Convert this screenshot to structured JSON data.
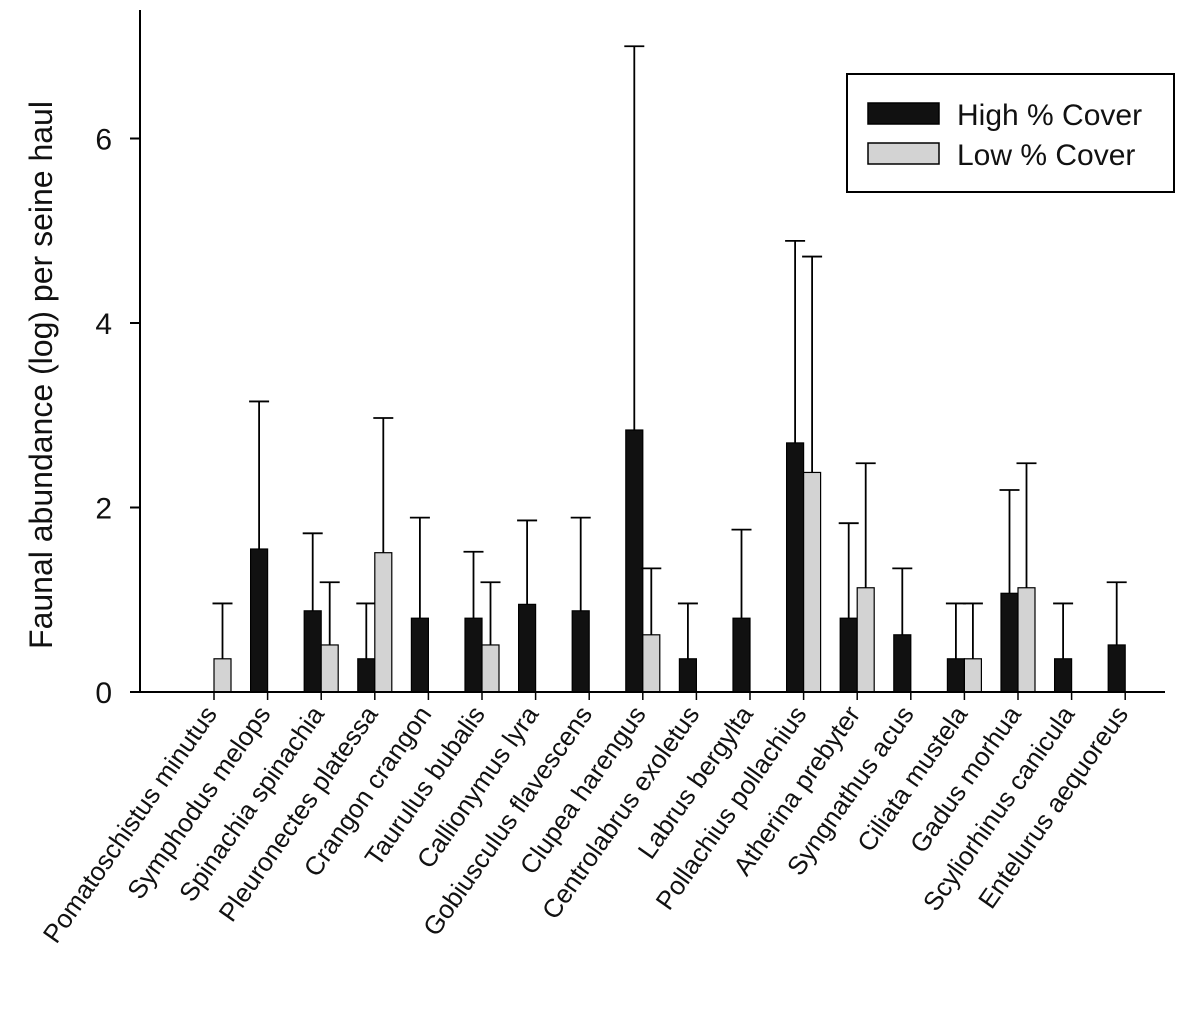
{
  "chart_data": {
    "type": "bar",
    "title": "",
    "xlabel": "",
    "ylabel": "Faunal abundance (log) per seine haul",
    "ylim": [
      0,
      7.4
    ],
    "yticks": [
      0,
      2,
      4,
      6
    ],
    "grid": false,
    "legend_position": "top-right",
    "categories": [
      "Pomatoschistus minutus",
      "Symphodus melops",
      "Spinachia spinachia",
      "Pleuronectes platessa",
      "Crangon crangon",
      "Taurulus bubalis",
      "Callionymus lyra",
      "Gobiusculus flavescens",
      "Clupea harengus",
      "Centrolabrus exoletus",
      "Labrus bergylta",
      "Pollachius pollachius",
      "Atherina prebyter",
      "Syngnathus acus",
      "Ciliata mustela",
      "Gadus morhua",
      "Scyliorhinus canicula",
      "Entelurus aequoreus"
    ],
    "series": [
      {
        "name": "High % Cover",
        "color": "#111111",
        "values": [
          0,
          1.55,
          0.88,
          0.36,
          0.8,
          0.8,
          0.95,
          0.88,
          2.84,
          0.36,
          0.8,
          2.7,
          0.8,
          0.62,
          0.36,
          1.07,
          0.36,
          0.51
        ],
        "error_top": [
          null,
          3.15,
          1.72,
          0.96,
          1.89,
          1.52,
          1.86,
          1.89,
          7.0,
          0.96,
          1.76,
          4.89,
          1.83,
          1.34,
          0.96,
          2.19,
          0.96,
          1.19
        ]
      },
      {
        "name": "Low % Cover",
        "color": "#d3d3d3",
        "values": [
          0.36,
          0,
          0.51,
          1.51,
          0,
          0.51,
          0,
          0,
          0.62,
          0,
          0,
          2.38,
          1.13,
          0,
          0.36,
          1.13,
          0,
          0
        ],
        "error_top": [
          0.96,
          null,
          1.19,
          2.97,
          null,
          1.19,
          null,
          null,
          1.34,
          null,
          null,
          4.72,
          2.48,
          null,
          0.96,
          2.48,
          null,
          null
        ]
      }
    ]
  }
}
